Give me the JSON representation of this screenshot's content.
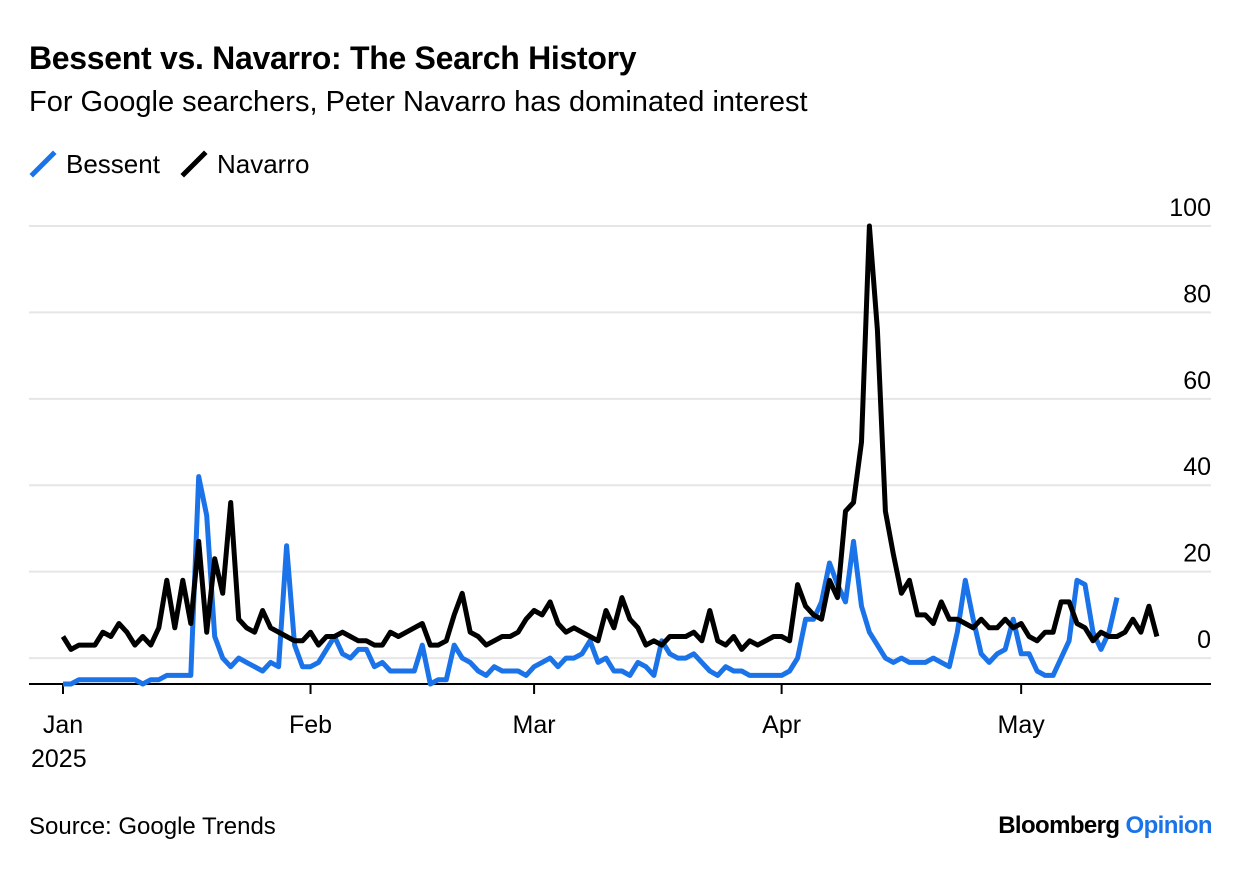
{
  "header": {
    "title": "Bessent vs. Navarro: The Search History",
    "subtitle": "For Google searchers, Peter Navarro has dominated interest"
  },
  "footer": {
    "source": "Source: Google Trends",
    "brand_name": "Bloomberg",
    "brand_section": "Opinion"
  },
  "colors": {
    "bessent": "#1a73e8",
    "navarro": "#000000",
    "grid": "#e6e6e6",
    "axis": "#000000"
  },
  "chart_data": {
    "type": "line",
    "x_start": "2025-01-01",
    "x_end": "2025-05-11",
    "x_step": "1 day",
    "ylim": [
      -6,
      100
    ],
    "yticks": [
      0,
      20,
      40,
      60,
      80,
      100
    ],
    "grid": true,
    "y_axis_side": "right",
    "legend_position": "top-left",
    "xticks": [
      {
        "date": "2025-01-01",
        "label": "Jan",
        "year": "2025"
      },
      {
        "date": "2025-02-01",
        "label": "Feb"
      },
      {
        "date": "2025-03-01",
        "label": "Mar"
      },
      {
        "date": "2025-04-01",
        "label": "Apr"
      },
      {
        "date": "2025-05-01",
        "label": "May"
      }
    ],
    "series": [
      {
        "name": "Bessent",
        "values": [
          -6,
          -6,
          -5,
          -5,
          -5,
          -5,
          -5,
          -5,
          -5,
          -5,
          -6,
          -5,
          -5,
          -4,
          -4,
          -4,
          -4,
          42,
          33,
          5,
          0,
          -2,
          0,
          -1,
          -2,
          -3,
          -1,
          -2,
          26,
          3,
          -2,
          -2,
          -1,
          2,
          5,
          1,
          0,
          2,
          2,
          -2,
          -1,
          -3,
          -3,
          -3,
          -3,
          3,
          -6,
          -5,
          -5,
          3,
          0,
          -1,
          -3,
          -4,
          -2,
          -3,
          -3,
          -3,
          -4,
          -2,
          -1,
          0,
          -2,
          0,
          0,
          1,
          4,
          -1,
          0,
          -3,
          -3,
          -4,
          -1,
          -2,
          -4,
          4,
          1,
          0,
          0,
          1,
          -1,
          -3,
          -4,
          -2,
          -3,
          -3,
          -4,
          -4,
          -4,
          -4,
          -4,
          -3,
          0,
          9,
          9,
          13,
          22,
          17,
          13,
          27,
          12,
          6,
          3,
          0,
          -1,
          0,
          -1,
          -1,
          -1,
          0,
          -1,
          -2,
          6,
          18,
          9,
          1,
          -1,
          1,
          2,
          9,
          1,
          1,
          -3,
          -4,
          -4,
          0,
          4,
          18,
          17,
          6,
          2,
          6,
          14
        ],
        "labels_on_chart": false
      },
      {
        "name": "Navarro",
        "values": [
          5,
          2,
          3,
          3,
          3,
          6,
          5,
          8,
          6,
          3,
          5,
          3,
          7,
          18,
          7,
          18,
          8,
          27,
          6,
          23,
          15,
          36,
          9,
          7,
          6,
          11,
          7,
          6,
          5,
          4,
          4,
          6,
          3,
          5,
          5,
          6,
          5,
          4,
          4,
          3,
          3,
          6,
          5,
          6,
          7,
          8,
          3,
          3,
          4,
          10,
          15,
          6,
          5,
          3,
          4,
          5,
          5,
          6,
          9,
          11,
          10,
          13,
          8,
          6,
          7,
          6,
          5,
          4,
          11,
          7,
          14,
          9,
          7,
          3,
          4,
          3,
          5,
          5,
          5,
          6,
          4,
          11,
          4,
          3,
          5,
          2,
          4,
          3,
          4,
          5,
          5,
          4,
          17,
          12,
          10,
          9,
          18,
          14,
          34,
          36,
          50,
          100,
          76,
          34,
          24,
          15,
          18,
          10,
          10,
          8,
          13,
          9,
          9,
          8,
          7,
          9,
          7,
          7,
          9,
          7,
          8,
          5,
          4,
          6,
          6,
          13,
          13,
          8,
          7,
          4,
          6,
          5,
          5,
          6,
          9,
          6,
          12,
          5
        ]
      }
    ]
  }
}
